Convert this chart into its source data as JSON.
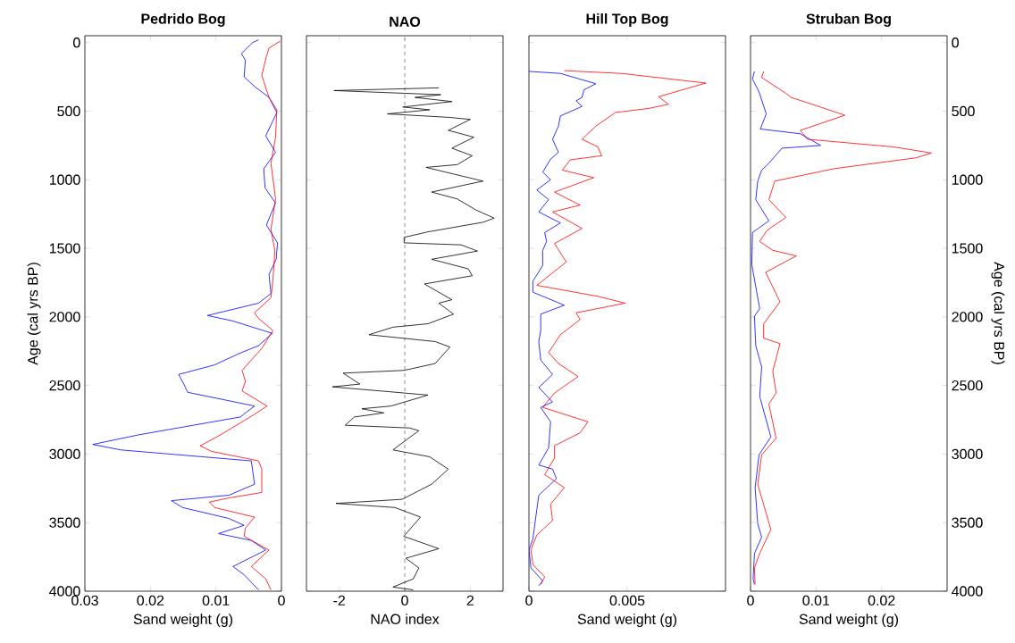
{
  "chart_data": [
    {
      "type": "line",
      "title": "Pedrido Bog",
      "xlabel": "Sand weight (g)",
      "ylabel": "Age (cal yrs BP)",
      "xlim": [
        0.03,
        0
      ],
      "xticks": [
        0.03,
        0.02,
        0.01,
        0
      ],
      "ylim": [
        4000,
        -50
      ],
      "yticks": [
        0,
        500,
        1000,
        1500,
        2000,
        2500,
        3000,
        3500,
        4000
      ],
      "series": [
        {
          "color": "#0000ff",
          "x": [
            0.0035,
            0.0044,
            0.0061,
            0.0055,
            0.0057,
            0.0041,
            0.0019,
            0.0007,
            0.0024,
            0.0009,
            0.0027,
            0.0025,
            0.0009,
            0.0023,
            0.0006,
            0.0008,
            0.0019,
            0.0016,
            0.0035,
            0.0113,
            0.0074,
            0.0014,
            0.0035,
            0.0066,
            0.0102,
            0.0157,
            0.0149,
            0.0143,
            0.0041,
            0.0063,
            0.0218,
            0.0288,
            0.0245,
            0.0046,
            0.0041,
            0.008,
            0.0168,
            0.0151,
            0.008,
            0.0057,
            0.0096,
            0.0046,
            0.0024,
            0.0074,
            0.0057,
            0.0035
          ],
          "values": [
            -20,
            0,
            80,
            130,
            250,
            320,
            400,
            510,
            680,
            800,
            920,
            1060,
            1170,
            1330,
            1460,
            1580,
            1690,
            1830,
            1900,
            1990,
            2030,
            2120,
            2210,
            2270,
            2350,
            2420,
            2490,
            2550,
            2650,
            2730,
            2860,
            2930,
            2970,
            3050,
            3220,
            3300,
            3340,
            3390,
            3470,
            3520,
            3580,
            3630,
            3700,
            3820,
            3880,
            3990
          ]
        },
        {
          "color": "#ff0000",
          "x": [
            0.0002,
            0.0019,
            0.0024,
            0.003,
            0.0019,
            0.0007,
            0.0009,
            0.0016,
            0.0009,
            0.0016,
            0.001,
            0.0013,
            0.0016,
            0.0041,
            0.0035,
            0.0013,
            0.003,
            0.006,
            0.0055,
            0.006,
            0.0022,
            0.0041,
            0.0093,
            0.0124,
            0.0107,
            0.0035,
            0.003,
            0.003,
            0.008,
            0.011,
            0.0102,
            0.0041,
            0.0055,
            0.0057,
            0.0019,
            0.0046,
            0.0024,
            0.0016
          ],
          "values": [
            -10,
            40,
            120,
            240,
            400,
            490,
            690,
            880,
            1140,
            1360,
            1520,
            1730,
            1860,
            1970,
            2010,
            2100,
            2230,
            2390,
            2470,
            2540,
            2650,
            2710,
            2860,
            2940,
            2980,
            3050,
            3110,
            3280,
            3320,
            3350,
            3390,
            3460,
            3540,
            3600,
            3700,
            3820,
            3910,
            3990
          ]
        }
      ]
    },
    {
      "type": "line",
      "title": "NAO",
      "xlabel": "NAO index",
      "xlim": [
        -3,
        3
      ],
      "xticks": [
        -2,
        0,
        2
      ],
      "ylim": [
        4000,
        -50
      ],
      "yticks": [
        0,
        500,
        1000,
        1500,
        2000,
        2500,
        3000,
        3500,
        4000
      ],
      "tick_labels": "x",
      "ref_lines": [
        {
          "axis": "x",
          "value": 0,
          "color": "#000000",
          "line_style": "dashed"
        }
      ],
      "series": [
        {
          "color": "#000000",
          "x": [
            1.04,
            -2.16,
            1.1,
            0.31,
            1.44,
            -0.06,
            0.76,
            -0.53,
            1.33,
            2.0,
            1.33,
            2.11,
            1.44,
            2.06,
            1.6,
            0.65,
            2.39,
            0.82,
            1.6,
            2.17,
            2.73,
            2.39,
            0.71,
            -0.02,
            -0.02,
            1.72,
            2.22,
            0.82,
            1.94,
            2.06,
            0.6,
            1.44,
            1.04,
            1.49,
            0.71,
            -0.36,
            -1.09,
            0.93,
            1.38,
            0.93,
            -0.02,
            -1.88,
            -1.37,
            -2.21,
            0.71,
            -0.42,
            -1.31,
            -0.64,
            -1.54,
            -1.82,
            0.15,
            0.43,
            0.03,
            -0.36,
            0.76,
            1.33,
            0.82,
            -0.08,
            -2.1,
            -0.3,
            0.48,
            -0.03,
            1.04,
            0.03,
            0.43,
            0.26,
            -0.36,
            0.26
          ],
          "values": [
            330,
            350,
            380,
            400,
            430,
            470,
            490,
            520,
            545,
            560,
            640,
            690,
            770,
            825,
            890,
            910,
            1010,
            1090,
            1140,
            1220,
            1280,
            1310,
            1380,
            1420,
            1460,
            1475,
            1520,
            1580,
            1650,
            1700,
            1760,
            1875,
            1900,
            1980,
            2050,
            2075,
            2130,
            2180,
            2220,
            2340,
            2390,
            2410,
            2490,
            2510,
            2570,
            2650,
            2670,
            2700,
            2730,
            2790,
            2810,
            2830,
            2900,
            2970,
            3020,
            3110,
            3220,
            3330,
            3360,
            3390,
            3460,
            3600,
            3690,
            3760,
            3830,
            3910,
            3970,
            3990
          ]
        }
      ]
    },
    {
      "type": "line",
      "title": "Hill Top Bog",
      "xlabel": "Sand weight (g)",
      "xlim": [
        0,
        0.01
      ],
      "xticks": [
        0,
        0.005
      ],
      "ylim": [
        4000,
        -50
      ],
      "yticks": [
        0,
        500,
        1000,
        1500,
        2000,
        2500,
        3000,
        3500,
        4000
      ],
      "tick_labels": "x",
      "series": [
        {
          "color": "#0000ff",
          "x": [
            0,
            0.0016,
            0.0034,
            0.0028,
            0.0027,
            0.0024,
            0.0027,
            0.0016,
            0.0015,
            0.0012,
            0.0015,
            0.0011,
            0.0007,
            0.0011,
            0.0004,
            0.001,
            0.0005,
            0.0016,
            0.0008,
            0.0009,
            0.0007,
            0.0007,
            0.0002,
            0.0002,
            0.0018,
            0.0006,
            0.0006,
            0.0005,
            0.0006,
            0.0012,
            0.0005,
            0.0012,
            0.0006,
            0.0011,
            0.001,
            0.0005,
            0.0012,
            0.0014,
            0.0005,
            0.0004,
            0.0002,
            0,
            0.0001,
            0.0007,
            0.0005
          ],
          "values": [
            210,
            225,
            300,
            345,
            400,
            425,
            465,
            535,
            610,
            705,
            800,
            850,
            945,
            1000,
            1075,
            1145,
            1235,
            1315,
            1385,
            1450,
            1515,
            1625,
            1740,
            1820,
            1915,
            1980,
            2100,
            2180,
            2315,
            2420,
            2515,
            2620,
            2660,
            2765,
            2955,
            3080,
            3110,
            3180,
            3300,
            3405,
            3620,
            3700,
            3830,
            3925,
            3960
          ]
        },
        {
          "color": "#ff0000",
          "x": [
            0.0018,
            0.0047,
            0.009,
            0.0066,
            0.0071,
            0.0061,
            0.0044,
            0.0034,
            0.0027,
            0.0035,
            0.0037,
            0.0021,
            0.0017,
            0.0033,
            0.0013,
            0.0026,
            0.0012,
            0.0027,
            0.0013,
            0.0019,
            0.0004,
            0.0035,
            0.0049,
            0.0024,
            0.0026,
            0.0016,
            0.001,
            0.0015,
            0.0025,
            0.0013,
            0.0007,
            0.003,
            0.0026,
            0.0013,
            0.0013,
            0.0008,
            0.0018,
            0.0011,
            0.0012,
            0.0004,
            0.0001,
            0.0002,
            0.0008,
            0.0006
          ],
          "values": [
            205,
            225,
            295,
            395,
            450,
            480,
            510,
            610,
            705,
            760,
            825,
            855,
            930,
            985,
            1090,
            1185,
            1235,
            1355,
            1465,
            1600,
            1770,
            1850,
            1900,
            1970,
            2020,
            2130,
            2260,
            2340,
            2435,
            2555,
            2660,
            2765,
            2845,
            2940,
            3030,
            3150,
            3245,
            3365,
            3485,
            3590,
            3700,
            3805,
            3895,
            3950
          ]
        }
      ]
    },
    {
      "type": "line",
      "title": "Struban Bog",
      "xlabel": "Sand weight (g)",
      "ylabel": "Age (cal yrs BP)",
      "xlim": [
        0,
        0.03
      ],
      "xticks": [
        0,
        0.01,
        0.02
      ],
      "ylim": [
        4000,
        -50
      ],
      "yticks": [
        0,
        500,
        1000,
        1500,
        2000,
        2500,
        3000,
        3500,
        4000
      ],
      "series": [
        {
          "color": "#0000ff",
          "x": [
            0.0006,
            0.0003,
            0.0013,
            0.0024,
            0.0015,
            0.0076,
            0.0107,
            0.0048,
            0.0028,
            0.0017,
            0.0011,
            0.0008,
            0.0028,
            0.0003,
            0.0002,
            0.0008,
            0.0014,
            0.0006,
            0.0008,
            0.0017,
            0.0014,
            0.0031,
            0.0013,
            0.0007,
            0.0011,
            0.0017,
            0.0006,
            0.0004,
            0.0006
          ],
          "values": [
            210,
            265,
            360,
            520,
            630,
            665,
            750,
            770,
            880,
            930,
            1010,
            1145,
            1300,
            1385,
            1620,
            1780,
            1940,
            1995,
            2210,
            2365,
            2580,
            2875,
            3005,
            3245,
            3510,
            3605,
            3725,
            3910,
            3950
          ]
        },
        {
          "color": "#ff0000",
          "x": [
            0.002,
            0.0017,
            0.0054,
            0.0062,
            0.0113,
            0.0144,
            0.0076,
            0.0087,
            0.0217,
            0.0276,
            0.0253,
            0.0127,
            0.0037,
            0.0028,
            0.0054,
            0.0025,
            0.0014,
            0.0034,
            0.007,
            0.0023,
            0.0045,
            0.002,
            0.002,
            0.0045,
            0.0034,
            0.0039,
            0.0028,
            0.0039,
            0.0017,
            0.0011,
            0.0031,
            0.0014,
            0.0006,
            0.0007
          ],
          "values": [
            210,
            255,
            370,
            400,
            480,
            530,
            640,
            705,
            760,
            805,
            840,
            920,
            1010,
            1145,
            1275,
            1370,
            1450,
            1515,
            1555,
            1675,
            1890,
            2050,
            2155,
            2195,
            2395,
            2555,
            2635,
            2885,
            3005,
            3220,
            3550,
            3725,
            3830,
            3950
          ]
        }
      ]
    }
  ]
}
